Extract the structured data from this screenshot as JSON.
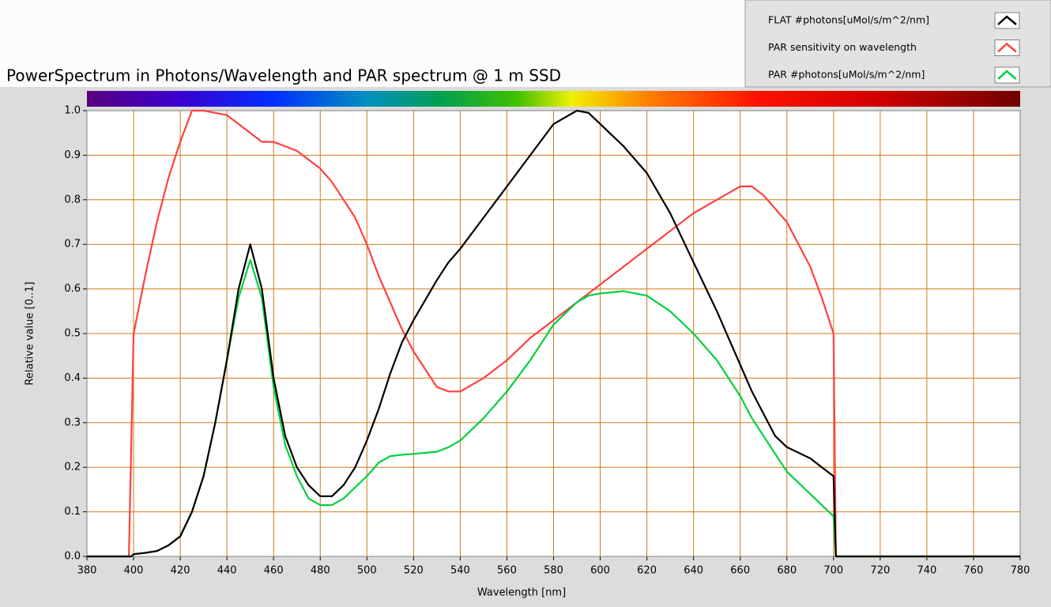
{
  "chart_data": {
    "type": "line",
    "title": "PowerSpectrum in Photons/Wavelength and PAR spectrum @ 1 m SSD",
    "x_label": "Wavelength [nm]",
    "y_label": "Relative value [0..1]",
    "x": [
      380,
      398,
      399,
      400,
      405,
      410,
      415,
      420,
      425,
      430,
      435,
      440,
      445,
      450,
      455,
      460,
      465,
      470,
      475,
      480,
      485,
      490,
      495,
      500,
      505,
      510,
      515,
      520,
      530,
      535,
      540,
      550,
      560,
      570,
      580,
      590,
      595,
      600,
      610,
      620,
      630,
      640,
      650,
      660,
      665,
      670,
      675,
      680,
      690,
      695,
      700,
      701,
      780
    ],
    "series": [
      {
        "name": "PAR sensitivity on wavelength",
        "color": "#ff4040",
        "values": [
          0,
          0,
          0.25,
          0.5,
          0.63,
          0.75,
          0.85,
          0.93,
          1.0,
          1.0,
          0.995,
          0.99,
          0.97,
          0.95,
          0.93,
          0.93,
          0.92,
          0.91,
          0.89,
          0.87,
          0.84,
          0.8,
          0.76,
          0.7,
          0.63,
          0.57,
          0.51,
          0.46,
          0.38,
          0.37,
          0.37,
          0.4,
          0.44,
          0.49,
          0.53,
          0.57,
          0.59,
          0.61,
          0.65,
          0.69,
          0.73,
          0.77,
          0.8,
          0.83,
          0.83,
          0.81,
          0.78,
          0.75,
          0.65,
          0.58,
          0.5,
          0,
          0
        ]
      },
      {
        "name": "PAR #photons[uMol/s/m^2/nm]",
        "color": "#00d040",
        "values": [
          0,
          0,
          0,
          0.005,
          0.008,
          0.012,
          0.025,
          0.045,
          0.1,
          0.18,
          0.3,
          0.44,
          0.58,
          0.665,
          0.58,
          0.38,
          0.25,
          0.18,
          0.13,
          0.115,
          0.115,
          0.13,
          0.155,
          0.18,
          0.21,
          0.225,
          0.228,
          0.23,
          0.235,
          0.245,
          0.26,
          0.31,
          0.37,
          0.44,
          0.52,
          0.57,
          0.585,
          0.59,
          0.595,
          0.585,
          0.55,
          0.5,
          0.44,
          0.36,
          0.31,
          0.27,
          0.23,
          0.19,
          0.14,
          0.115,
          0.09,
          0,
          0
        ]
      },
      {
        "name": "FLAT #photons[uMol/s/m^2/nm]",
        "color": "#000000",
        "values": [
          0,
          0,
          0,
          0.005,
          0.008,
          0.012,
          0.025,
          0.045,
          0.1,
          0.18,
          0.3,
          0.44,
          0.6,
          0.7,
          0.6,
          0.4,
          0.27,
          0.2,
          0.16,
          0.135,
          0.135,
          0.16,
          0.2,
          0.26,
          0.33,
          0.41,
          0.48,
          0.53,
          0.62,
          0.66,
          0.69,
          0.76,
          0.83,
          0.9,
          0.97,
          1.0,
          0.995,
          0.97,
          0.92,
          0.86,
          0.77,
          0.66,
          0.55,
          0.43,
          0.37,
          0.32,
          0.27,
          0.245,
          0.22,
          0.2,
          0.18,
          0,
          0
        ]
      }
    ],
    "legend_order": [
      2,
      0,
      1
    ],
    "xlim": [
      380,
      780
    ],
    "ylim": [
      0,
      1
    ],
    "xticks": [
      380,
      400,
      420,
      440,
      460,
      480,
      500,
      520,
      540,
      560,
      580,
      600,
      620,
      640,
      660,
      680,
      700,
      720,
      740,
      760,
      780
    ],
    "yticks": [
      {
        "value": 0,
        "label": "0.0"
      },
      0.1,
      0.2,
      0.3,
      0.4,
      0.5,
      0.6,
      0.7,
      0.8,
      0.9,
      {
        "value": 1,
        "label": "1.0"
      }
    ],
    "grid": true,
    "grid_color": "#d07a1a"
  }
}
